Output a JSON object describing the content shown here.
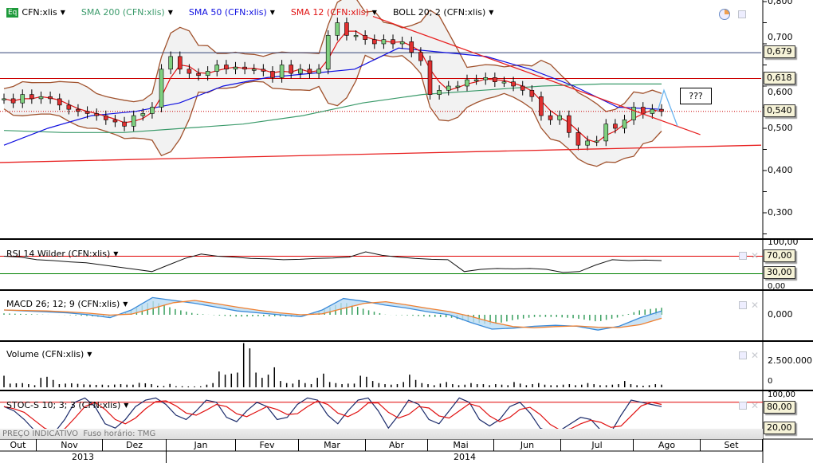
{
  "legend": {
    "symbol": "CFN:xlis",
    "symbol_badge": "Eq",
    "sma200": "SMA 200 (CFN:xlis)",
    "sma50": "SMA 50 (CFN:xlis)",
    "sma12": "SMA 12 (CFN:xlis)",
    "boll": "BOLL 20; 2 (CFN:xlis)"
  },
  "colors": {
    "sma200": "#3a9a6a",
    "sma50": "#1010e0",
    "sma12": "#e01010",
    "boll": "#a0522d",
    "up": "#7fd07f",
    "down": "#e03030"
  },
  "price_axis": {
    "ticks": [
      "0,800",
      "0,700",
      "0,600",
      "0,500",
      "0,400",
      "0,300"
    ],
    "tags": [
      "0,679",
      "0,618",
      "0,540"
    ],
    "annotation": "???"
  },
  "panels": {
    "rsi": {
      "label": "RSI 14 Wilder (CFN:xlis)",
      "ticks": [
        "100,00",
        "0,00"
      ],
      "tags": [
        "70,00",
        "30,00"
      ]
    },
    "macd": {
      "label": "MACD 26; 12; 9 (CFN:xlis)",
      "ticks": [
        "0,000"
      ]
    },
    "volume": {
      "label": "Volume (CFN:xlis)",
      "ticks": [
        "2.500.000",
        "0"
      ]
    },
    "stoc": {
      "label": "STOC-S 10; 3; 3 (CFN:xlis)",
      "ticks": [
        "100,00",
        "0,00"
      ],
      "tags": [
        "80,00",
        "20,00"
      ]
    }
  },
  "status": {
    "price_note": "PREÇO INDICATIVO",
    "timezone": "Fuso horário: TMG"
  },
  "months": [
    "Out",
    "Nov",
    "Dez",
    "Jan",
    "Fev",
    "Mar",
    "Abr",
    "Mai",
    "Jun",
    "Jul",
    "Ago",
    "Set"
  ],
  "years": [
    "2013",
    "2014"
  ],
  "chart_data": {
    "type": "candlestick",
    "title": "CFN:xlis",
    "ylim": [
      0.28,
      0.8
    ],
    "closes": [
      0.57,
      0.56,
      0.58,
      0.57,
      0.575,
      0.57,
      0.555,
      0.545,
      0.54,
      0.535,
      0.53,
      0.52,
      0.515,
      0.505,
      0.53,
      0.535,
      0.55,
      0.64,
      0.67,
      0.64,
      0.63,
      0.625,
      0.635,
      0.65,
      0.64,
      0.645,
      0.64,
      0.64,
      0.635,
      0.62,
      0.65,
      0.63,
      0.64,
      0.63,
      0.64,
      0.72,
      0.75,
      0.72,
      0.72,
      0.71,
      0.7,
      0.71,
      0.7,
      0.705,
      0.68,
      0.66,
      0.58,
      0.59,
      0.6,
      0.6,
      0.615,
      0.615,
      0.62,
      0.61,
      0.61,
      0.6,
      0.59,
      0.575,
      0.53,
      0.52,
      0.53,
      0.49,
      0.46,
      0.47,
      0.47,
      0.51,
      0.5,
      0.52,
      0.55,
      0.535,
      0.545,
      0.54
    ],
    "sma200": [
      0.495,
      0.49,
      0.49,
      0.5,
      0.51,
      0.53,
      0.56,
      0.58,
      0.59,
      0.6,
      0.605,
      0.605
    ],
    "sma50": [
      0.46,
      0.5,
      0.53,
      0.54,
      0.56,
      0.6,
      0.62,
      0.63,
      0.64,
      0.69,
      0.68,
      0.67,
      0.64,
      0.6,
      0.55,
      0.545
    ],
    "hlines": [
      0.679,
      0.618,
      0.54
    ],
    "trendlines": [
      {
        "from": [
          0.0,
          0.419
        ],
        "to": [
          1.0,
          0.46
        ]
      },
      {
        "from": [
          0.49,
          0.765
        ],
        "to": [
          0.92,
          0.485
        ]
      }
    ],
    "projection": [
      0.54,
      0.59,
      0.505
    ],
    "rsi": [
      70,
      68,
      62,
      60,
      57,
      55,
      50,
      45,
      40,
      35,
      50,
      65,
      75,
      70,
      68,
      65,
      64,
      62,
      63,
      65,
      66,
      68,
      80,
      72,
      68,
      65,
      63,
      62,
      35,
      40,
      42,
      41,
      42,
      40,
      33,
      35,
      50,
      62,
      60,
      61,
      60
    ],
    "macd": [
      0.005,
      0.004,
      0.003,
      0.002,
      0.0,
      -0.003,
      0.005,
      0.018,
      0.015,
      0.012,
      0.008,
      0.004,
      0.002,
      0.0,
      -0.002,
      0.005,
      0.017,
      0.014,
      0.01,
      0.007,
      0.003,
      0.0,
      -0.008,
      -0.015,
      -0.014,
      -0.012,
      -0.011,
      -0.012,
      -0.016,
      -0.012,
      -0.003,
      0.004
    ],
    "volume_k": [
      1100,
      350,
      380,
      400,
      300,
      200,
      900,
      1000,
      700,
      300,
      350,
      380,
      330,
      280,
      250,
      230,
      250,
      200,
      260,
      300,
      250,
      250,
      420,
      380,
      300,
      150,
      120,
      320,
      100,
      100,
      80,
      80,
      90,
      250,
      400,
      1500,
      1200,
      1300,
      1400,
      4200,
      3700,
      1400,
      900,
      1200,
      1900,
      600,
      400,
      350,
      700,
      400,
      300,
      900,
      1300,
      500,
      400,
      300,
      350,
      350,
      1100,
      1000,
      600,
      400,
      300,
      250,
      300,
      500,
      1200,
      700,
      400,
      300,
      200,
      350,
      500,
      300,
      200,
      250,
      400,
      300,
      300,
      200,
      300,
      250,
      200,
      500,
      350,
      200,
      300,
      400,
      250,
      200,
      200,
      250,
      300,
      200,
      250,
      400,
      300,
      200,
      200,
      250,
      300,
      600,
      300,
      200,
      150,
      200,
      300,
      250
    ],
    "stoc_k": [
      70,
      60,
      40,
      15,
      5,
      10,
      40,
      80,
      90,
      70,
      30,
      20,
      40,
      70,
      85,
      90,
      75,
      50,
      40,
      60,
      85,
      80,
      45,
      35,
      60,
      80,
      70,
      40,
      45,
      75,
      90,
      85,
      50,
      30,
      60,
      85,
      90,
      60,
      20,
      50,
      85,
      75,
      40,
      30,
      60,
      90,
      80,
      40,
      25,
      40,
      70,
      80,
      55,
      20,
      10,
      15,
      30,
      45,
      40,
      15,
      10,
      50,
      85,
      80,
      75,
      70
    ]
  }
}
